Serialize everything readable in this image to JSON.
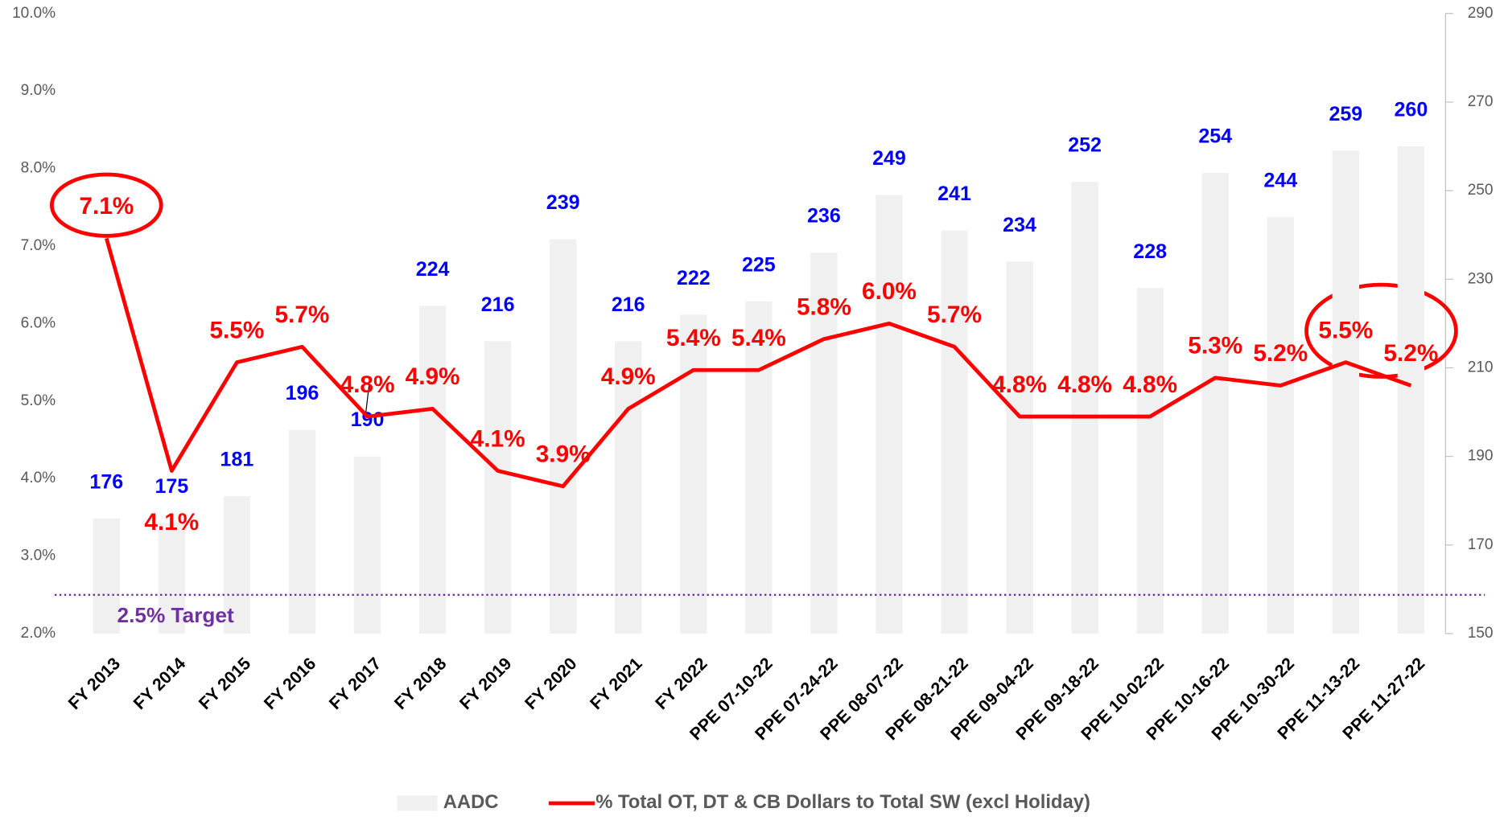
{
  "chart_data": {
    "type": "combo",
    "categories": [
      "FY 2013",
      "FY 2014",
      "FY 2015",
      "FY 2016",
      "FY 2017",
      "FY 2018",
      "FY 2019",
      "FY 2020",
      "FY 2021",
      "FY 2022",
      "PPE 07-10-22",
      "PPE 07-24-22",
      "PPE 08-07-22",
      "PPE 08-21-22",
      "PPE 09-04-22",
      "PPE 09-18-22",
      "PPE 10-02-22",
      "PPE 10-16-22",
      "PPE 10-30-22",
      "PPE 11-13-22",
      "PPE 11-27-22"
    ],
    "series": [
      {
        "name": "AADC",
        "type": "bar",
        "axis": "y2",
        "color": "#f0f0f0",
        "values": [
          176,
          175,
          181,
          196,
          190,
          224,
          216,
          239,
          216,
          222,
          225,
          236,
          249,
          241,
          234,
          252,
          228,
          254,
          244,
          259,
          260
        ]
      },
      {
        "name": "% Total OT, DT & CB Dollars to Total SW (excl Holiday)",
        "type": "line",
        "color": "#ff0000",
        "values": [
          7.1,
          4.1,
          5.5,
          5.7,
          4.8,
          4.9,
          4.1,
          3.9,
          4.9,
          5.4,
          5.4,
          5.8,
          6.0,
          5.7,
          4.8,
          4.8,
          4.8,
          5.3,
          5.2,
          5.5,
          5.2
        ],
        "value_labels": [
          "7.1%",
          "4.1%",
          "5.5%",
          "5.7%",
          "4.8%",
          "4.9%",
          "4.1%",
          "3.9%",
          "4.9%",
          "5.4%",
          "5.4%",
          "5.8%",
          "6.0%",
          "5.7%",
          "4.8%",
          "4.8%",
          "4.8%",
          "5.3%",
          "5.2%",
          "5.5%",
          "5.2%"
        ]
      }
    ],
    "ylim": [
      2,
      10
    ],
    "yticks": [
      {
        "value": 2,
        "label": "2.0%"
      },
      {
        "value": 3,
        "label": "3.0%"
      },
      {
        "value": 4,
        "label": "4.0%"
      },
      {
        "value": 5,
        "label": "5.0%"
      },
      {
        "value": 6,
        "label": "6.0%"
      },
      {
        "value": 7,
        "label": "7.0%"
      },
      {
        "value": 8,
        "label": "8.0%"
      },
      {
        "value": 9,
        "label": "9.0%"
      },
      {
        "value": 10,
        "label": "10.0%"
      }
    ],
    "y2lim": [
      150,
      290
    ],
    "y2ticks": [
      150,
      170,
      190,
      210,
      230,
      250,
      270,
      290
    ],
    "target": {
      "value": 2.5,
      "label": "2.5% Target",
      "color": "#7030a0"
    },
    "legend": "bottom"
  }
}
